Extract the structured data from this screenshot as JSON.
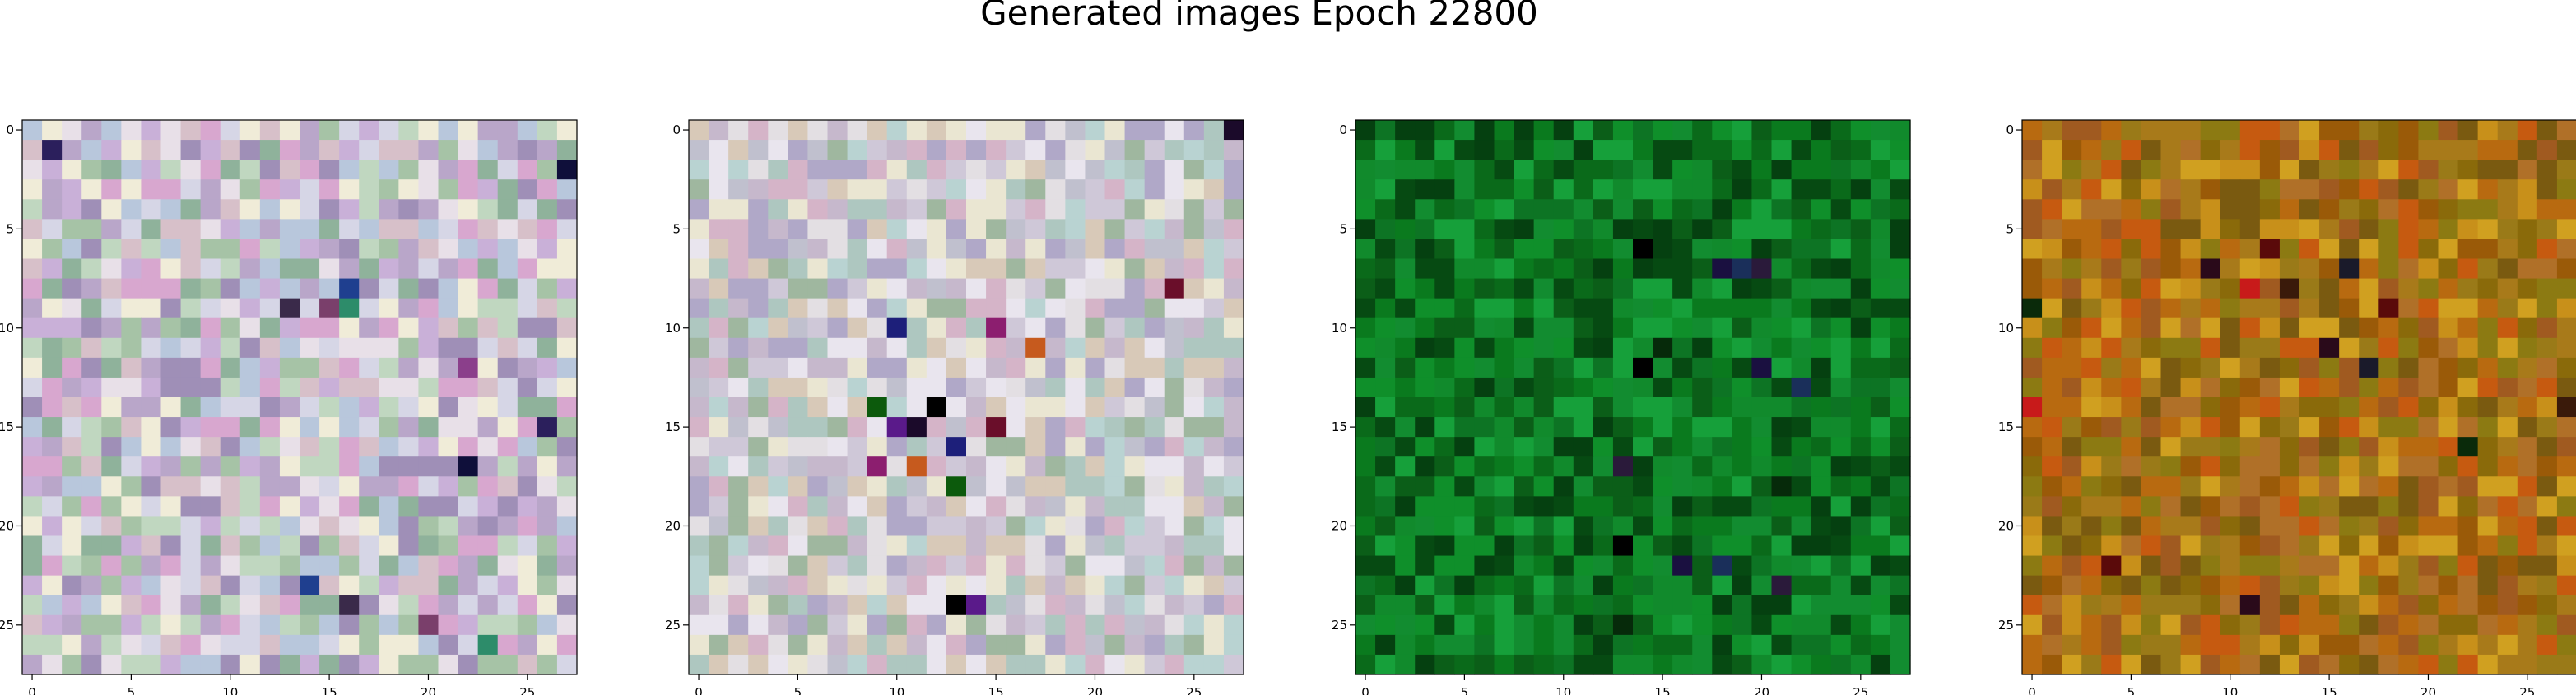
{
  "figure": {
    "title": "Generated images Epoch 22800",
    "background": "#ffffff"
  },
  "chart_data": [
    {
      "type": "heatmap",
      "subplot": 1,
      "title": "",
      "xlabel": "",
      "ylabel": "",
      "grid_size": [
        28,
        28
      ],
      "xlim": [
        -0.5,
        27.5
      ],
      "ylim": [
        27.5,
        -0.5
      ],
      "xticks": [
        0,
        5,
        10,
        15,
        20,
        25
      ],
      "yticks": [
        0,
        5,
        10,
        15,
        20,
        25
      ],
      "palette": [
        "#c9b0d8",
        "#b8c7dc",
        "#d6d6e6",
        "#e8e0e8",
        "#c0d7c0",
        "#a6c3a6",
        "#d8a7cf",
        "#9f8fb7",
        "#b9a6c9",
        "#f0ecd8",
        "#8fb29b",
        "#d7c0c9"
      ],
      "accent_colors": [
        "#2b1f5c",
        "#0f0f3a",
        "#1f3f8f",
        "#3a2a4a",
        "#7a3f6b",
        "#2d8c6a",
        "#8b3f8b"
      ],
      "accent_pixels": [
        [
          1,
          1
        ],
        [
          2,
          27
        ],
        [
          8,
          16
        ],
        [
          9,
          13
        ],
        [
          9,
          15
        ],
        [
          9,
          16
        ],
        [
          12,
          22
        ],
        [
          15,
          26
        ],
        [
          17,
          22
        ],
        [
          23,
          14
        ],
        [
          24,
          16
        ],
        [
          25,
          20
        ],
        [
          26,
          23
        ]
      ],
      "pixels_approx": true
    },
    {
      "type": "heatmap",
      "subplot": 2,
      "title": "",
      "xlabel": "",
      "ylabel": "",
      "grid_size": [
        28,
        28
      ],
      "xlim": [
        -0.5,
        27.5
      ],
      "ylim": [
        27.5,
        -0.5
      ],
      "xticks": [
        0,
        5,
        10,
        15,
        20,
        25
      ],
      "yticks": [
        0,
        5,
        10,
        15,
        20,
        25
      ],
      "palette": [
        "#cfc8d8",
        "#b9d3d2",
        "#e3dfe3",
        "#c6b8cc",
        "#aec7c0",
        "#d8c9b8",
        "#b0a8c8",
        "#e9e5ee",
        "#9fb79f",
        "#d5b4c8",
        "#c0c0ce",
        "#eae6d2"
      ],
      "accent_colors": [
        "#1b0a2a",
        "#6a0e2a",
        "#1d1f7a",
        "#8c1e6f",
        "#c65a1e",
        "#0c5a0c",
        "#000000",
        "#5a1a8a"
      ],
      "accent_pixels": [
        [
          0,
          27
        ],
        [
          8,
          24
        ],
        [
          10,
          10
        ],
        [
          10,
          15
        ],
        [
          11,
          17
        ],
        [
          14,
          9
        ],
        [
          14,
          12
        ],
        [
          15,
          10
        ],
        [
          15,
          11
        ],
        [
          15,
          15
        ],
        [
          16,
          13
        ],
        [
          17,
          9
        ],
        [
          17,
          11
        ],
        [
          18,
          13
        ],
        [
          24,
          13
        ],
        [
          24,
          14
        ]
      ],
      "pixels_approx": true
    },
    {
      "type": "heatmap",
      "subplot": 3,
      "title": "",
      "xlabel": "",
      "ylabel": "",
      "grid_size": [
        28,
        28
      ],
      "xlim": [
        -0.5,
        27.5
      ],
      "ylim": [
        27.5,
        -0.5
      ],
      "xticks": [
        0,
        5,
        10,
        15,
        20,
        25
      ],
      "yticks": [
        0,
        5,
        10,
        15,
        20,
        25
      ],
      "palette": [
        "#0a7a1e",
        "#0b5e18",
        "#0f8f2a",
        "#064a12",
        "#128c30",
        "#0a6a1a",
        "#16a03a",
        "#054010",
        "#0d7424",
        "#118a2c"
      ],
      "accent_colors": [
        "#000000",
        "#1a1040",
        "#1a2f5a",
        "#2a1a3a",
        "#062a0a"
      ],
      "accent_pixels": [
        [
          6,
          14
        ],
        [
          7,
          18
        ],
        [
          7,
          19
        ],
        [
          7,
          20
        ],
        [
          11,
          15
        ],
        [
          12,
          14
        ],
        [
          12,
          20
        ],
        [
          13,
          22
        ],
        [
          17,
          13
        ],
        [
          18,
          21
        ],
        [
          21,
          13
        ],
        [
          22,
          16
        ],
        [
          22,
          18
        ],
        [
          23,
          21
        ],
        [
          25,
          13
        ]
      ],
      "pixels_approx": true
    },
    {
      "type": "heatmap",
      "subplot": 4,
      "title": "",
      "xlabel": "",
      "ylabel": "",
      "grid_size": [
        28,
        28
      ],
      "xlim": [
        -0.5,
        27.5
      ],
      "ylim": [
        27.5,
        -0.5
      ],
      "xticks": [
        0,
        5,
        10,
        15,
        20,
        25
      ],
      "yticks": [
        0,
        5,
        10,
        15,
        20,
        25
      ],
      "palette": [
        "#b86a10",
        "#9a5a08",
        "#c8901a",
        "#8a6a0a",
        "#a87a1a",
        "#c65a10",
        "#7a5a10",
        "#d0a020",
        "#9a7a18",
        "#b07028",
        "#a05a20",
        "#8c7a12"
      ],
      "accent_colors": [
        "#5a0a0a",
        "#2a0a1a",
        "#1a1a2a",
        "#c81a1a",
        "#3a1a0a",
        "#0a2a0a"
      ],
      "accent_pixels": [
        [
          6,
          12
        ],
        [
          7,
          9
        ],
        [
          7,
          16
        ],
        [
          8,
          11
        ],
        [
          8,
          13
        ],
        [
          9,
          0
        ],
        [
          9,
          18
        ],
        [
          11,
          15
        ],
        [
          12,
          17
        ],
        [
          14,
          0
        ],
        [
          14,
          27
        ],
        [
          16,
          22
        ],
        [
          22,
          4
        ],
        [
          24,
          11
        ]
      ],
      "pixels_approx": true
    }
  ]
}
